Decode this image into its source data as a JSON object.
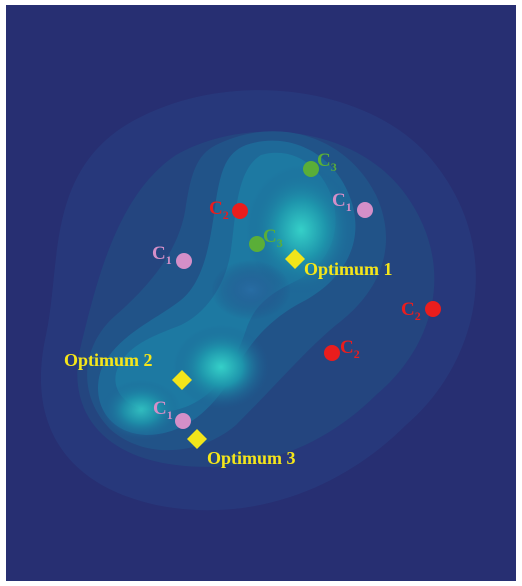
{
  "colors": {
    "background_low": "#272f72",
    "background_mid": "#1f4f8c",
    "ridge": "#1c7fa3",
    "peak": "#2fc8c5",
    "optimum_marker": "#f2e51a",
    "optimum_label": "#f5e61a",
    "c1": "#d48fc8",
    "c2": "#ea1d1d",
    "c3": "#5aae38"
  },
  "points": [
    {
      "name": "point-c3-top",
      "base": "C",
      "sub": "3",
      "class": "c3"
    },
    {
      "name": "point-c1-top-right",
      "base": "C",
      "sub": "1",
      "class": "c1"
    },
    {
      "name": "point-c2-top",
      "base": "C",
      "sub": "2",
      "class": "c2"
    },
    {
      "name": "point-c3-mid",
      "base": "C",
      "sub": "3",
      "class": "c3"
    },
    {
      "name": "point-c1-left",
      "base": "C",
      "sub": "1",
      "class": "c1"
    },
    {
      "name": "point-c2-right",
      "base": "C",
      "sub": "2",
      "class": "c2"
    },
    {
      "name": "point-c2-center",
      "base": "C",
      "sub": "2",
      "class": "c2"
    },
    {
      "name": "point-c1-bottom",
      "base": "C",
      "sub": "1",
      "class": "c1"
    }
  ],
  "optima": [
    {
      "name": "optimum-1",
      "label": "Optimum 1"
    },
    {
      "name": "optimum-2",
      "label": "Optimum 2"
    },
    {
      "name": "optimum-3",
      "label": "Optimum 3"
    }
  ]
}
